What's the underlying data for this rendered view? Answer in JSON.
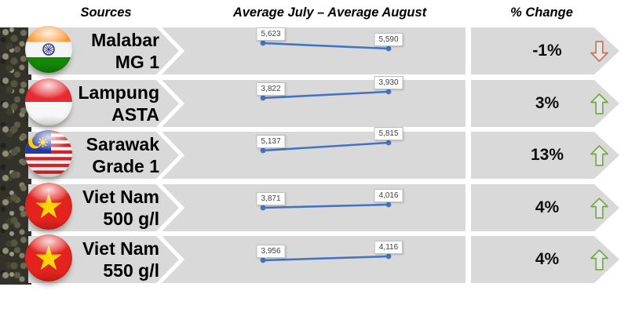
{
  "header": {
    "sources": "Sources",
    "average": "Average July – Average August",
    "pct_change": "% Change"
  },
  "colors": {
    "row_bg": "#D9D9D9",
    "line": "#4472C4",
    "up": "#70AD47",
    "down": "#C87450",
    "label_border": "#BFBFBF"
  },
  "rows": [
    {
      "name_lines": [
        "Malabar",
        "MG 1"
      ],
      "flag": "india",
      "values": [
        5623,
        5590
      ],
      "value_labels": [
        "5,623",
        "5,590"
      ],
      "pct_change": "-1%",
      "direction": "down",
      "spark_y": [
        20,
        27
      ]
    },
    {
      "name_lines": [
        "Lampung",
        "ASTA"
      ],
      "flag": "indonesia",
      "values": [
        3822,
        3930
      ],
      "value_labels": [
        "3,822",
        "3,930"
      ],
      "pct_change": "3%",
      "direction": "up",
      "spark_y": [
        23,
        15
      ]
    },
    {
      "name_lines": [
        "Sarawak",
        "Grade 1"
      ],
      "flag": "malaysia",
      "values": [
        5137,
        5815
      ],
      "value_labels": [
        "5,137",
        "5,815"
      ],
      "pct_change": "13%",
      "direction": "up",
      "spark_y": [
        24,
        14
      ]
    },
    {
      "name_lines": [
        "Viet Nam",
        "500 g/l"
      ],
      "flag": "vietnam",
      "values": [
        3871,
        4016
      ],
      "value_labels": [
        "3,871",
        "4,016"
      ],
      "pct_change": "4%",
      "direction": "up",
      "spark_y": [
        30,
        26
      ]
    },
    {
      "name_lines": [
        "Viet Nam",
        "550 g/l"
      ],
      "flag": "vietnam",
      "values": [
        3956,
        4116
      ],
      "value_labels": [
        "3,956",
        "4,116"
      ],
      "pct_change": "4%",
      "direction": "up",
      "spark_y": [
        31,
        26
      ]
    }
  ],
  "chart_data": {
    "type": "line",
    "title": "Average July – Average August",
    "x": [
      "Average July",
      "Average August"
    ],
    "series": [
      {
        "name": "Malabar MG 1",
        "values": [
          5623,
          5590
        ],
        "pct_change": "-1%",
        "direction": "down"
      },
      {
        "name": "Lampung ASTA",
        "values": [
          3822,
          3930
        ],
        "pct_change": "3%",
        "direction": "up"
      },
      {
        "name": "Sarawak Grade 1",
        "values": [
          5137,
          5815
        ],
        "pct_change": "13%",
        "direction": "up"
      },
      {
        "name": "Viet Nam 500 g/l",
        "values": [
          3871,
          4016
        ],
        "pct_change": "4%",
        "direction": "up"
      },
      {
        "name": "Viet Nam 550 g/l",
        "values": [
          3956,
          4116
        ],
        "pct_change": "4%",
        "direction": "up"
      }
    ],
    "legend": false,
    "grid": false,
    "data_labels": true,
    "line_color": "#4472C4"
  }
}
